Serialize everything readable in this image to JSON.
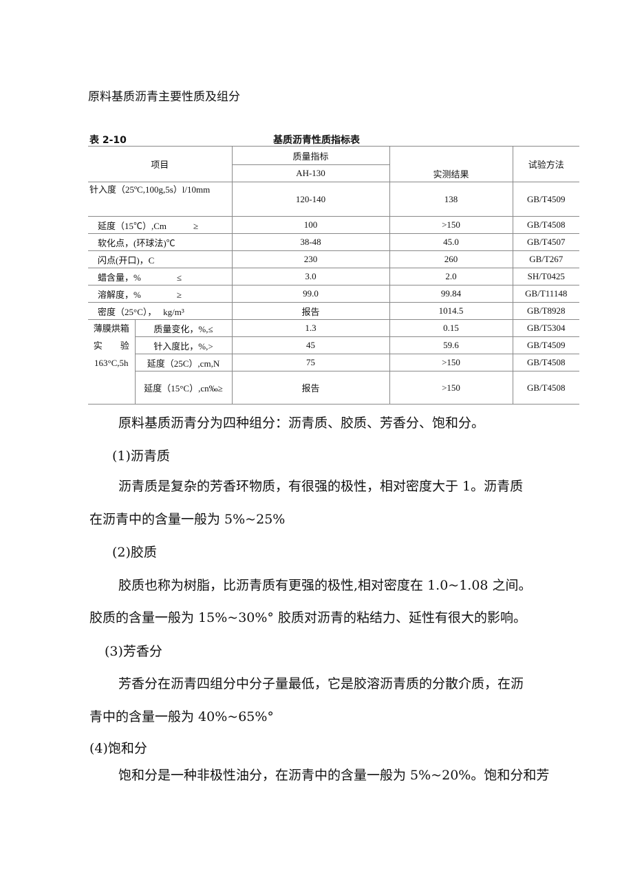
{
  "heading": "原料基质沥青主要性质及组分",
  "table": {
    "number": "表 2-10",
    "title": "基质沥青性质指标表",
    "headers": {
      "item": "项目",
      "quality": "质量指标",
      "grade": "AH-130",
      "result": "实测结果",
      "method": "试验方法"
    },
    "rows": [
      [
        "针入度（25ºC,100g,5s）l/10mm",
        "120-140",
        "138",
        "GB/T4509"
      ],
      [
        "延度（15℃）,Cm　　　≥",
        "100",
        ">150",
        "GB/T4508"
      ],
      [
        "软化点，(环球法)℃",
        "38-48",
        "45.0",
        "GB/T4507"
      ],
      [
        "闪点(开口)，C",
        "230",
        "260",
        "GB/T267"
      ],
      [
        "蜡含量，%　　　　≤",
        "3.0",
        "2.0",
        "SH/T0425"
      ],
      [
        "溶解度，%　　　　≥",
        "99.0",
        "99.84",
        "GB/T11148"
      ],
      [
        "密度（25°C），　 kg/m³",
        "报告",
        "1014.5",
        "GB/T8928"
      ]
    ],
    "group_label": [
      "薄膜烘箱",
      "实　　验",
      "163°C,5h"
    ],
    "group_rows": [
      [
        "质量变化，%,≤",
        "1.3",
        "0.15",
        "GB/T5304"
      ],
      [
        "针入度比，%,>",
        "45",
        "59.6",
        "GB/T4509"
      ],
      [
        "延度（25C）,cm,N",
        "75",
        ">150",
        "GB/T4508"
      ],
      [
        "延度（15°C）,cn‰≥",
        "报告",
        ">150",
        "GB/T4508"
      ]
    ]
  },
  "paragraphs": [
    "原料基质沥青分为四种组分：沥青质、胶质、芳香分、饱和分。",
    "(1)沥青质",
    "沥青质是复杂的芳香环物质，有很强的极性，相对密度大于 1。沥青质",
    "在沥青中的含量一般为 5%~25%",
    "(2)胶质",
    "胶质也称为树脂，比沥青质有更强的极性,相对密度在 1.0~1.08 之间。",
    "胶质的含量一般为 15%~30%° 胶质对沥青的粘结力、延性有很大的影响。",
    "(3)芳香分",
    "芳香分在沥青四组分中分子量最低，它是胶溶沥青质的分散介质，在沥",
    "青中的含量一般为 40%~65%°",
    "(4)饱和分",
    "饱和分是一种非极性油分，在沥青中的含量一般为 5%~20%。饱和分和芳"
  ]
}
